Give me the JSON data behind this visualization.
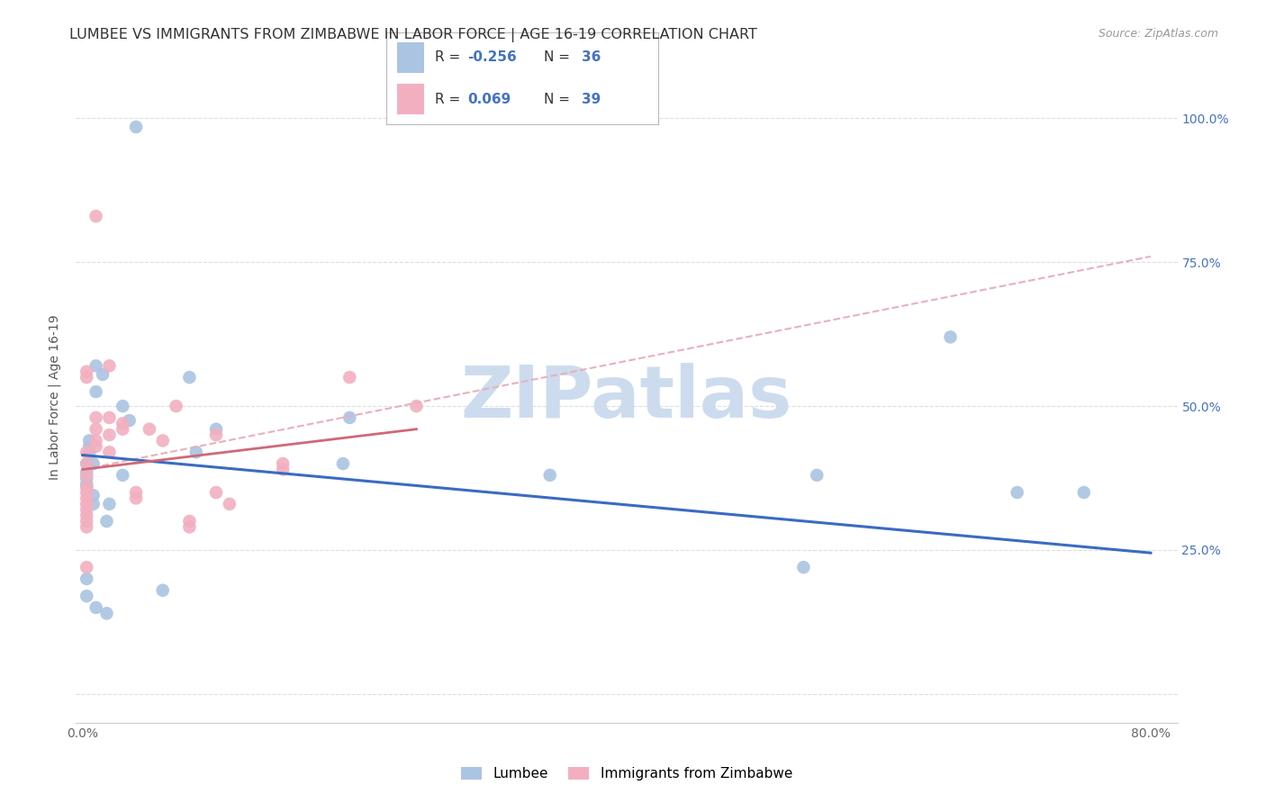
{
  "title": "LUMBEE VS IMMIGRANTS FROM ZIMBABWE IN LABOR FORCE | AGE 16-19 CORRELATION CHART",
  "source": "Source: ZipAtlas.com",
  "ylabel": "In Labor Force | Age 16-19",
  "xlim": [
    -0.005,
    0.82
  ],
  "ylim": [
    -0.05,
    1.08
  ],
  "xtick_positions": [
    0.0,
    0.2,
    0.4,
    0.6,
    0.8
  ],
  "xticklabels": [
    "0.0%",
    "",
    "",
    "",
    "80.0%"
  ],
  "ytick_positions": [
    0.0,
    0.25,
    0.5,
    0.75,
    1.0
  ],
  "yticklabels_right": [
    "",
    "25.0%",
    "50.0%",
    "75.0%",
    "100.0%"
  ],
  "legend_r_blue": "-0.256",
  "legend_n_blue": "36",
  "legend_r_pink": "0.069",
  "legend_n_pink": "39",
  "blue_scatter_x": [
    0.04,
    0.01,
    0.015,
    0.01,
    0.005,
    0.005,
    0.005,
    0.008,
    0.003,
    0.003,
    0.003,
    0.003,
    0.003,
    0.008,
    0.008,
    0.03,
    0.035,
    0.02,
    0.08,
    0.085,
    0.1,
    0.2,
    0.195,
    0.35,
    0.55,
    0.54,
    0.65,
    0.7,
    0.75,
    0.003,
    0.003,
    0.01,
    0.018,
    0.018,
    0.06,
    0.03
  ],
  "blue_scatter_y": [
    0.985,
    0.57,
    0.555,
    0.525,
    0.44,
    0.43,
    0.42,
    0.4,
    0.4,
    0.385,
    0.375,
    0.365,
    0.36,
    0.345,
    0.33,
    0.5,
    0.475,
    0.33,
    0.55,
    0.42,
    0.46,
    0.48,
    0.4,
    0.38,
    0.38,
    0.22,
    0.62,
    0.35,
    0.35,
    0.2,
    0.17,
    0.15,
    0.14,
    0.3,
    0.18,
    0.38
  ],
  "pink_scatter_x": [
    0.01,
    0.003,
    0.003,
    0.003,
    0.003,
    0.003,
    0.003,
    0.003,
    0.003,
    0.003,
    0.003,
    0.003,
    0.01,
    0.01,
    0.01,
    0.01,
    0.02,
    0.02,
    0.02,
    0.02,
    0.03,
    0.03,
    0.04,
    0.04,
    0.05,
    0.06,
    0.07,
    0.08,
    0.08,
    0.1,
    0.1,
    0.11,
    0.15,
    0.15,
    0.2,
    0.25,
    0.003,
    0.003,
    0.003
  ],
  "pink_scatter_y": [
    0.83,
    0.42,
    0.4,
    0.38,
    0.36,
    0.35,
    0.34,
    0.33,
    0.32,
    0.31,
    0.3,
    0.29,
    0.48,
    0.46,
    0.44,
    0.43,
    0.57,
    0.48,
    0.45,
    0.42,
    0.47,
    0.46,
    0.35,
    0.34,
    0.46,
    0.44,
    0.5,
    0.3,
    0.29,
    0.45,
    0.35,
    0.33,
    0.4,
    0.39,
    0.55,
    0.5,
    0.56,
    0.55,
    0.22
  ],
  "blue_line_x": [
    0.0,
    0.8
  ],
  "blue_line_y": [
    0.415,
    0.245
  ],
  "pink_solid_line_x": [
    0.0,
    0.25
  ],
  "pink_solid_line_y": [
    0.39,
    0.46
  ],
  "pink_dashed_line_x": [
    0.0,
    0.8
  ],
  "pink_dashed_line_y": [
    0.39,
    0.76
  ],
  "background_color": "#ffffff",
  "grid_color": "#dddddd",
  "blue_color": "#aac4e2",
  "blue_line_color": "#3a6bc4",
  "pink_color": "#f2afc0",
  "pink_solid_color": "#d06878",
  "pink_dashed_color": "#e8b0bc",
  "watermark_text": "ZIPatlas",
  "watermark_color": "#ccdcee",
  "title_fontsize": 11.5,
  "source_fontsize": 9,
  "axis_label_fontsize": 10,
  "tick_fontsize": 10,
  "right_tick_color": "#4472c4"
}
